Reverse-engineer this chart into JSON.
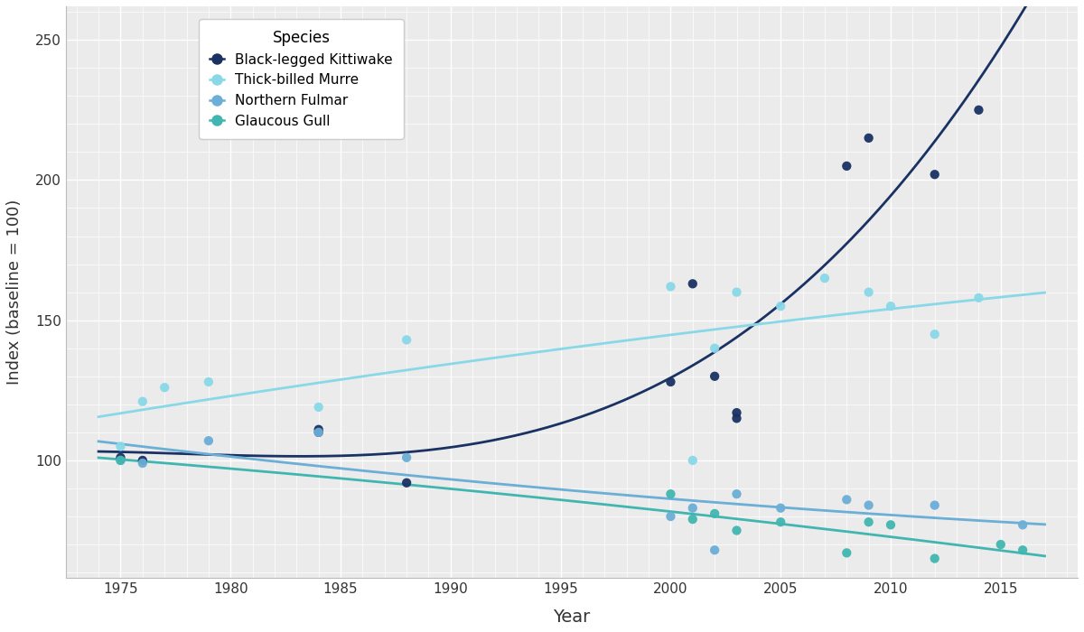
{
  "xlabel": "Year",
  "ylabel": "Index (baseline = 100)",
  "xlim": [
    1972.5,
    2018.5
  ],
  "ylim": [
    58,
    262
  ],
  "yticks": [
    100,
    150,
    200,
    250
  ],
  "xticks": [
    1975,
    1980,
    1985,
    1990,
    1995,
    2000,
    2005,
    2010,
    2015
  ],
  "plot_bg": "#ebebeb",
  "fig_bg": "#ffffff",
  "grid_color": "#ffffff",
  "species": {
    "kittiwake": {
      "label": "Black-legged Kittiwake",
      "color": "#1a3263",
      "points_x": [
        1975,
        1976,
        1984,
        1984,
        1988,
        2000,
        2001,
        2002,
        2003,
        2003,
        2008,
        2009,
        2012,
        2014
      ],
      "points_y": [
        101,
        100,
        111,
        110,
        92,
        128,
        163,
        130,
        115,
        117,
        205,
        215,
        202,
        225
      ]
    },
    "murre": {
      "label": "Thick-billed Murre",
      "color": "#88d8e8",
      "points_x": [
        1975,
        1976,
        1977,
        1979,
        1984,
        1988,
        2000,
        2001,
        2002,
        2003,
        2005,
        2007,
        2009,
        2010,
        2012,
        2014
      ],
      "points_y": [
        105,
        121,
        126,
        128,
        119,
        143,
        162,
        100,
        140,
        160,
        155,
        165,
        160,
        155,
        145,
        158
      ]
    },
    "fulmar": {
      "label": "Northern Fulmar",
      "color": "#6baed6",
      "points_x": [
        1975,
        1976,
        1979,
        1984,
        1988,
        2000,
        2001,
        2002,
        2003,
        2005,
        2008,
        2009,
        2012,
        2016
      ],
      "points_y": [
        100,
        99,
        107,
        110,
        101,
        80,
        83,
        68,
        88,
        83,
        86,
        84,
        84,
        77
      ]
    },
    "gull": {
      "label": "Glaucous Gull",
      "color": "#41b6b0",
      "points_x": [
        1975,
        2000,
        2001,
        2002,
        2003,
        2005,
        2008,
        2009,
        2010,
        2012,
        2015,
        2016
      ],
      "points_y": [
        100,
        88,
        79,
        81,
        75,
        78,
        67,
        78,
        77,
        65,
        70,
        68
      ]
    }
  },
  "legend_title": "Species",
  "legend_fontsize": 11,
  "legend_title_fontsize": 12
}
